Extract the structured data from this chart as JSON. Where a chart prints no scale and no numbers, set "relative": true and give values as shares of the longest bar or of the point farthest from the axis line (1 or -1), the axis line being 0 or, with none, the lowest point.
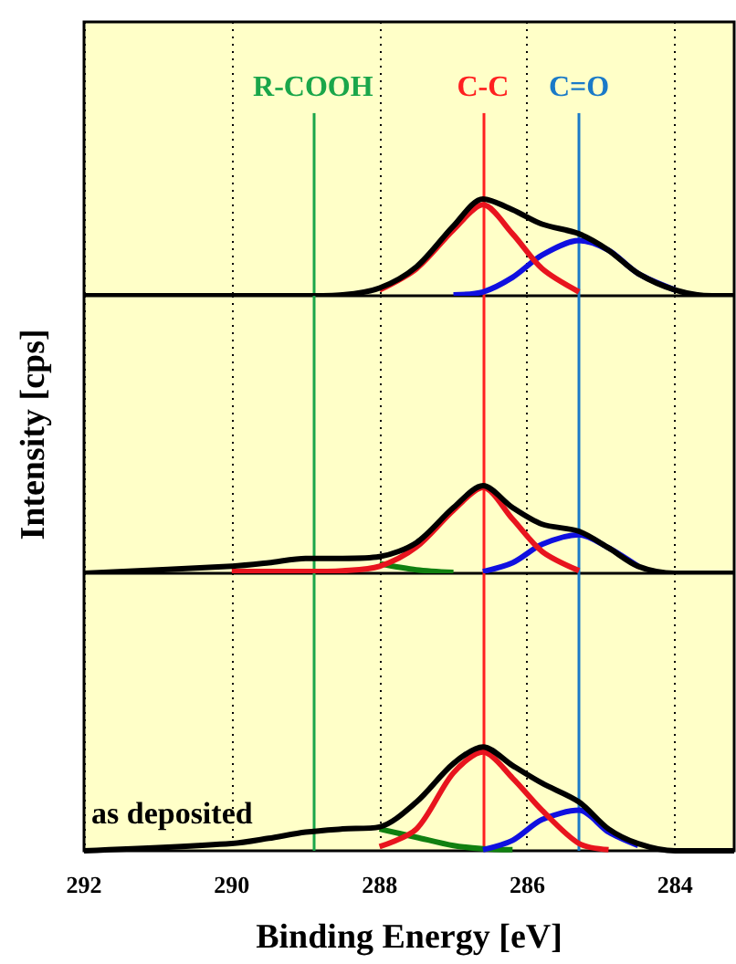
{
  "chart_data": [
    {
      "type": "line",
      "relative": true,
      "x": [
        292,
        290,
        289.5,
        289,
        288.5,
        288,
        287.5,
        287,
        286.6,
        286.2,
        285.8,
        285.3,
        284.9,
        284.5,
        284,
        283.5,
        283.2
      ],
      "xlim": [
        292,
        283.2
      ],
      "xticks": [
        292,
        290,
        288,
        286,
        284
      ],
      "grid": "x",
      "tick_labels": false,
      "series": [
        {
          "color": "#000000",
          "values": [
            0,
            0,
            0,
            0,
            0.01,
            0.08,
            0.3,
            0.72,
            1,
            0.89,
            0.74,
            0.64,
            0.47,
            0.23,
            0.06,
            0,
            0
          ]
        },
        {
          "color": "#e8141e",
          "values": [
            null,
            null,
            null,
            null,
            null,
            0.06,
            0.28,
            0.68,
            0.94,
            0.64,
            0.28,
            0.04,
            null,
            null,
            null,
            null,
            null
          ]
        },
        {
          "color": "#1010e0",
          "values": [
            null,
            null,
            null,
            null,
            null,
            null,
            null,
            0.01,
            0.04,
            0.19,
            0.42,
            0.57,
            0.47,
            0.23,
            0.06,
            null,
            null
          ]
        }
      ],
      "ref_lines": [
        {
          "axis": "x",
          "value": 288.9,
          "label": "R-COOH",
          "color": "#1aa64a"
        },
        {
          "axis": "x",
          "value": 286.6,
          "label": "C-C",
          "color": "#ff2020"
        },
        {
          "axis": "x",
          "value": 285.3,
          "label": "C=O",
          "color": "#1a7ac8"
        }
      ]
    },
    {
      "type": "line",
      "relative": true,
      "ylabel": "Intensity [cps]",
      "x": [
        292,
        290,
        289.5,
        289,
        288.5,
        288,
        287.5,
        287,
        286.6,
        286.2,
        285.8,
        285.3,
        284.9,
        284.5,
        284,
        283.5,
        283.2
      ],
      "xlim": [
        292,
        283.2
      ],
      "xticks": [
        292,
        290,
        288,
        286,
        284
      ],
      "grid": "x",
      "tick_labels": false,
      "series": [
        {
          "color": "#000000",
          "values": [
            0,
            0.08,
            0.12,
            0.17,
            0.17,
            0.19,
            0.35,
            0.75,
            1,
            0.75,
            0.56,
            0.48,
            0.29,
            0.08,
            0,
            0,
            0
          ]
        },
        {
          "color": "#e8141e",
          "values": [
            null,
            0.02,
            0.02,
            0.02,
            0.03,
            0.08,
            0.3,
            0.72,
            0.98,
            0.62,
            0.25,
            0.03,
            null,
            null,
            null,
            null,
            null
          ]
        },
        {
          "color": "#1010e0",
          "values": [
            null,
            null,
            null,
            null,
            null,
            null,
            null,
            null,
            0.02,
            0.12,
            0.33,
            0.44,
            0.29,
            0.08,
            null,
            null,
            null
          ]
        },
        {
          "color": "#108010",
          "values": [
            null,
            null,
            null,
            null,
            null,
            0.11,
            0.04,
            0.01,
            null,
            null,
            null,
            null,
            null,
            null,
            null,
            null,
            null
          ]
        }
      ],
      "ref_lines": [
        {
          "axis": "x",
          "value": 288.9,
          "color": "#1aa64a"
        },
        {
          "axis": "x",
          "value": 286.6,
          "color": "#ff2020"
        },
        {
          "axis": "x",
          "value": 285.3,
          "color": "#1a7ac8"
        }
      ]
    },
    {
      "type": "line",
      "relative": true,
      "xlabel": "Binding Energy [eV]",
      "x": [
        292,
        290,
        289.5,
        289,
        288.5,
        288,
        287.5,
        287,
        286.6,
        286.2,
        285.8,
        285.3,
        284.9,
        284.5,
        284,
        283.5,
        283.2
      ],
      "xlim": [
        292,
        283.2
      ],
      "xticks": [
        292,
        290,
        288,
        286,
        284
      ],
      "grid": "x",
      "tick_labels": "x",
      "annotations": [
        "as deposited"
      ],
      "series": [
        {
          "color": "#000000",
          "values": [
            0,
            0.07,
            0.12,
            0.18,
            0.21,
            0.23,
            0.47,
            0.84,
            1,
            0.82,
            0.65,
            0.47,
            0.21,
            0.07,
            0,
            0,
            0
          ]
        },
        {
          "color": "#e8141e",
          "values": [
            null,
            null,
            null,
            null,
            null,
            0.04,
            0.21,
            0.75,
            0.95,
            0.7,
            0.39,
            0.07,
            0.01,
            null,
            null,
            null,
            null
          ]
        },
        {
          "color": "#1010e0",
          "values": [
            null,
            null,
            null,
            null,
            null,
            null,
            null,
            null,
            0.01,
            0.1,
            0.3,
            0.39,
            0.18,
            0.05,
            null,
            null,
            null
          ]
        },
        {
          "color": "#108010",
          "values": [
            null,
            null,
            null,
            null,
            null,
            0.21,
            0.13,
            0.05,
            0.02,
            0.01,
            null,
            null,
            null,
            null,
            null,
            null,
            null
          ]
        }
      ],
      "ref_lines": [
        {
          "axis": "x",
          "value": 288.9,
          "color": "#1aa64a"
        },
        {
          "axis": "x",
          "value": 286.6,
          "color": "#ff2020"
        },
        {
          "axis": "x",
          "value": 285.3,
          "color": "#1a7ac8"
        }
      ]
    }
  ]
}
